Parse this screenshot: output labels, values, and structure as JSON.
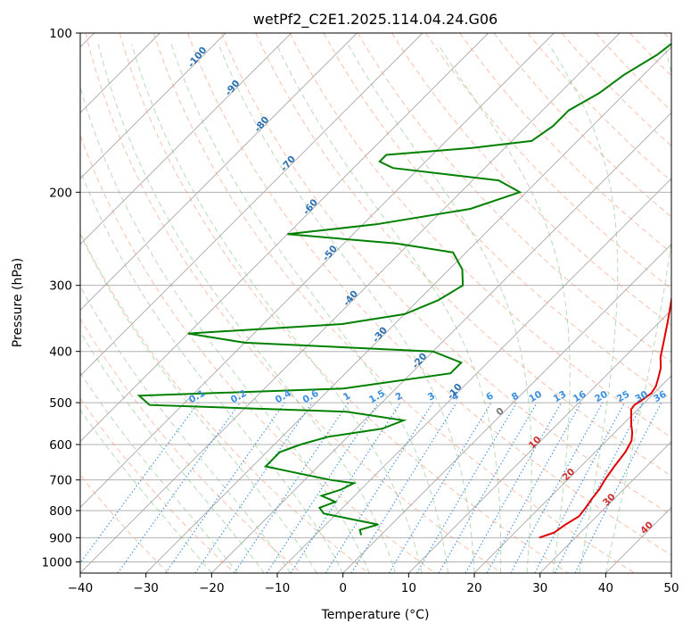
{
  "chart_data": {
    "type": "line",
    "title": "wetPf2_C2E1.2025.114.04.24.G06",
    "xlabel": "Temperature (°C)",
    "ylabel": "Pressure (hPa)",
    "xlim": [
      -40,
      50
    ],
    "ylim": [
      1050,
      100
    ],
    "y_scale": "log",
    "x_ticks": [
      -40,
      -30,
      -20,
      -10,
      0,
      10,
      20,
      30,
      40,
      50
    ],
    "y_ticks": [
      100,
      200,
      300,
      400,
      500,
      600,
      700,
      800,
      900,
      1000
    ],
    "grid": true,
    "skew": true,
    "series": [
      {
        "color": "#e00000",
        "points": [
          [
            900,
            24.5
          ],
          [
            880,
            26.0
          ],
          [
            850,
            26.5
          ],
          [
            820,
            27.3
          ],
          [
            790,
            27.0
          ],
          [
            760,
            26.6
          ],
          [
            730,
            26.3
          ],
          [
            700,
            25.7
          ],
          [
            660,
            25.1
          ],
          [
            620,
            24.6
          ],
          [
            590,
            23.8
          ],
          [
            570,
            22.7
          ],
          [
            550,
            21.3
          ],
          [
            530,
            20.0
          ],
          [
            515,
            19.0
          ],
          [
            505,
            18.8
          ],
          [
            495,
            19.2
          ],
          [
            480,
            19.6
          ],
          [
            465,
            19.2
          ],
          [
            450,
            18.4
          ],
          [
            430,
            17.2
          ],
          [
            410,
            15.5
          ],
          [
            380,
            13.4
          ],
          [
            350,
            11.1
          ],
          [
            320,
            8.5
          ],
          [
            290,
            5.6
          ],
          [
            270,
            3.7
          ],
          [
            250,
            2.0
          ],
          [
            230,
            0.2
          ],
          [
            210,
            -2.0
          ],
          [
            195,
            -3.8
          ],
          [
            180,
            -4.2
          ],
          [
            160,
            -6.7
          ],
          [
            150,
            -8.2
          ],
          [
            130,
            -12.3
          ],
          [
            120,
            -14.9
          ],
          [
            110,
            -18.3
          ],
          [
            100,
            -21.8
          ]
        ]
      },
      {
        "color": "#008000",
        "points": [
          [
            890,
            -3.0
          ],
          [
            870,
            -4.0
          ],
          [
            850,
            -2.0
          ],
          [
            830,
            -7.0
          ],
          [
            810,
            -12.0
          ],
          [
            790,
            -13.5
          ],
          [
            770,
            -12.0
          ],
          [
            750,
            -15.0
          ],
          [
            730,
            -13.0
          ],
          [
            710,
            -12.0
          ],
          [
            700,
            -16.0
          ],
          [
            680,
            -22.0
          ],
          [
            660,
            -28.0
          ],
          [
            640,
            -28.0
          ],
          [
            620,
            -28.0
          ],
          [
            600,
            -26.0
          ],
          [
            580,
            -23.0
          ],
          [
            560,
            -16.0
          ],
          [
            540,
            -14.0
          ],
          [
            520,
            -24.0
          ],
          [
            505,
            -55.0
          ],
          [
            485,
            -58.0
          ],
          [
            470,
            -28.0
          ],
          [
            440,
            -14.0
          ],
          [
            420,
            -14.0
          ],
          [
            400,
            -20.0
          ],
          [
            385,
            -50.0
          ],
          [
            370,
            -60.0
          ],
          [
            355,
            -38.0
          ],
          [
            340,
            -30.0
          ],
          [
            320,
            -27.0
          ],
          [
            300,
            -25.5
          ],
          [
            280,
            -28.0
          ],
          [
            260,
            -32.0
          ],
          [
            250,
            -42.0
          ],
          [
            240,
            -60.0
          ],
          [
            230,
            -48.0
          ],
          [
            215,
            -36.0
          ],
          [
            200,
            -31.0
          ],
          [
            190,
            -36.0
          ],
          [
            180,
            -54.0
          ],
          [
            175,
            -57.0
          ],
          [
            170,
            -57.0
          ],
          [
            165,
            -45.0
          ],
          [
            160,
            -37.0
          ],
          [
            150,
            -36.0
          ],
          [
            140,
            -36.0
          ],
          [
            130,
            -34.0
          ],
          [
            120,
            -33.0
          ],
          [
            110,
            -31.0
          ],
          [
            100,
            -30.0
          ]
        ]
      }
    ],
    "mixing_ratio_labels": [
      "0.1",
      "0.2",
      "0.4",
      "0.6",
      "1",
      "1.5",
      "2",
      "3",
      "4",
      "6",
      "8",
      "10",
      "13",
      "16",
      "20",
      "25",
      "30",
      "36"
    ],
    "dry_adiabat_labels": [
      "-100",
      "-90",
      "-80",
      "-70",
      "-60",
      "-50",
      "-40",
      "-30",
      "-20",
      "-10"
    ],
    "zero_label": "0",
    "moist_adiabat_labels": [
      "10",
      "20",
      "30",
      "40"
    ]
  }
}
